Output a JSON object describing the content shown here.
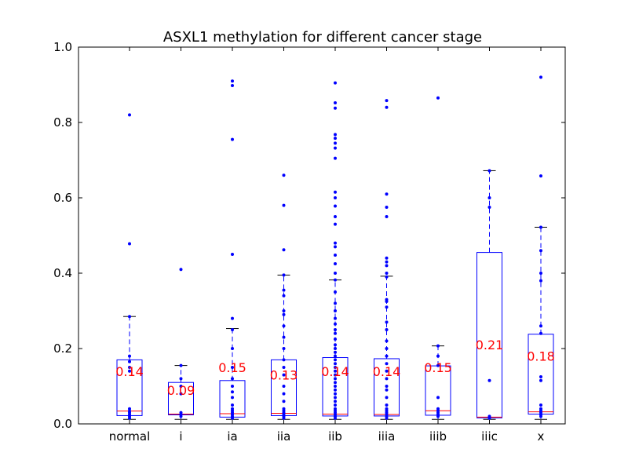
{
  "chart_data": {
    "type": "box",
    "title": "ASXL1 methylation for different cancer stage",
    "xlabel": "",
    "ylabel": "",
    "ylim": [
      0.0,
      1.0
    ],
    "yticks": [
      0.0,
      0.2,
      0.4,
      0.6,
      0.8,
      1.0
    ],
    "ytick_labels": [
      "0.0",
      "0.2",
      "0.4",
      "0.6",
      "0.8",
      "1.0"
    ],
    "grid": false,
    "colors": {
      "box": "#0000ff",
      "median": "#ff0000",
      "points": "#0000ff",
      "cap": "#000000",
      "mean_label": "#ff0000"
    },
    "categories": [
      "normal",
      "i",
      "ia",
      "iia",
      "iib",
      "iiia",
      "iiib",
      "iiic",
      "x"
    ],
    "boxes": [
      {
        "category": "normal",
        "q1": 0.022,
        "median": 0.034,
        "q3": 0.17,
        "whisker_low": 0.012,
        "whisker_high": 0.285,
        "mean_label": "0.14",
        "mean": 0.14,
        "points": [
          0.82,
          0.478,
          0.285,
          0.18,
          0.165,
          0.15,
          0.14,
          0.04,
          0.034,
          0.03,
          0.025,
          0.02,
          0.015
        ]
      },
      {
        "category": "i",
        "q1": 0.024,
        "median": 0.026,
        "q3": 0.11,
        "whisker_low": 0.012,
        "whisker_high": 0.155,
        "mean_label": "0.09",
        "mean": 0.09,
        "points": [
          0.41,
          0.155,
          0.12,
          0.1,
          0.08,
          0.03,
          0.025,
          0.02
        ]
      },
      {
        "category": "ia",
        "q1": 0.018,
        "median": 0.027,
        "q3": 0.115,
        "whisker_low": 0.012,
        "whisker_high": 0.253,
        "mean_label": "0.15",
        "mean": 0.15,
        "points": [
          0.91,
          0.898,
          0.755,
          0.45,
          0.28,
          0.25,
          0.2,
          0.15,
          0.12,
          0.1,
          0.085,
          0.07,
          0.05,
          0.04,
          0.035,
          0.03,
          0.025,
          0.02,
          0.015
        ]
      },
      {
        "category": "iia",
        "q1": 0.022,
        "median": 0.028,
        "q3": 0.17,
        "whisker_low": 0.012,
        "whisker_high": 0.395,
        "mean_label": "0.13",
        "mean": 0.13,
        "points": [
          0.66,
          0.58,
          0.462,
          0.395,
          0.355,
          0.34,
          0.3,
          0.29,
          0.26,
          0.23,
          0.2,
          0.17,
          0.15,
          0.13,
          0.1,
          0.08,
          0.06,
          0.04,
          0.035,
          0.03,
          0.025,
          0.02,
          0.015
        ]
      },
      {
        "category": "iib",
        "q1": 0.021,
        "median": 0.026,
        "q3": 0.176,
        "whisker_low": 0.012,
        "whisker_high": 0.382,
        "mean_label": "0.14",
        "mean": 0.14,
        "points": [
          0.905,
          0.852,
          0.838,
          0.768,
          0.758,
          0.745,
          0.732,
          0.705,
          0.615,
          0.6,
          0.578,
          0.55,
          0.53,
          0.48,
          0.47,
          0.448,
          0.425,
          0.4,
          0.382,
          0.35,
          0.32,
          0.3,
          0.28,
          0.265,
          0.25,
          0.24,
          0.225,
          0.21,
          0.2,
          0.19,
          0.18,
          0.17,
          0.16,
          0.15,
          0.14,
          0.13,
          0.12,
          0.11,
          0.1,
          0.09,
          0.08,
          0.07,
          0.06,
          0.05,
          0.04,
          0.035,
          0.03,
          0.025,
          0.02,
          0.015
        ]
      },
      {
        "category": "iiia",
        "q1": 0.021,
        "median": 0.025,
        "q3": 0.173,
        "whisker_low": 0.012,
        "whisker_high": 0.392,
        "mean_label": "0.14",
        "mean": 0.14,
        "points": [
          0.858,
          0.84,
          0.61,
          0.575,
          0.55,
          0.44,
          0.43,
          0.42,
          0.4,
          0.39,
          0.33,
          0.325,
          0.31,
          0.27,
          0.25,
          0.22,
          0.2,
          0.18,
          0.16,
          0.14,
          0.12,
          0.1,
          0.09,
          0.07,
          0.05,
          0.04,
          0.035,
          0.03,
          0.025,
          0.02,
          0.015
        ]
      },
      {
        "category": "iiib",
        "q1": 0.023,
        "median": 0.035,
        "q3": 0.154,
        "whisker_low": 0.012,
        "whisker_high": 0.207,
        "mean_label": "0.15",
        "mean": 0.15,
        "points": [
          0.865,
          0.207,
          0.18,
          0.155,
          0.07,
          0.04,
          0.035,
          0.03,
          0.025,
          0.02
        ]
      },
      {
        "category": "iiic",
        "q1": 0.016,
        "median": 0.018,
        "q3": 0.455,
        "whisker_low": 0.012,
        "whisker_high": 0.672,
        "mean_label": "0.21",
        "mean": 0.21,
        "points": [
          0.672,
          0.6,
          0.575,
          0.115,
          0.02,
          0.018,
          0.015
        ]
      },
      {
        "category": "x",
        "q1": 0.026,
        "median": 0.032,
        "q3": 0.238,
        "whisker_low": 0.012,
        "whisker_high": 0.522,
        "mean_label": "0.18",
        "mean": 0.18,
        "points": [
          0.92,
          0.658,
          0.522,
          0.46,
          0.4,
          0.38,
          0.26,
          0.24,
          0.125,
          0.115,
          0.05,
          0.04,
          0.035,
          0.03,
          0.025,
          0.02
        ]
      }
    ]
  }
}
